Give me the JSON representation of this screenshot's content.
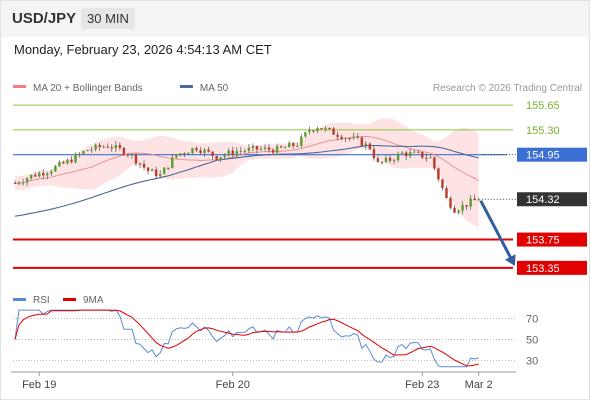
{
  "header": {
    "symbol": "USD/JPY",
    "timeframe": "30 MIN"
  },
  "datetime": "Monday, February 23, 2026 4:54:13 AM CET",
  "credit": "Research © 2026 Trading Central",
  "colors": {
    "green_level": "#8cc63f",
    "blue_level": "#3b6fd4",
    "red_level": "#e00000",
    "price_tag": "#333333",
    "bollinger_fill": "#fde3e3",
    "ma20": "#e88a8a",
    "ma50": "#4a6a9a",
    "rsi": "#5b8ad6",
    "rsi_ma": "#e00000",
    "candle_up": "#5aa02c",
    "candle_down": "#c0392b",
    "forecast_arrow": "#2f5f9e"
  },
  "chart_data": [
    {
      "type": "candlestick",
      "title": "",
      "legend": [
        {
          "name": "MA 20 + Bollinger Bands",
          "color": "#f08080"
        },
        {
          "name": "MA 50",
          "color": "#4a6a9a"
        }
      ],
      "legend_position": "top-left",
      "ylim": [
        153.15,
        156.02
      ],
      "x_ticks": [
        {
          "label": "Feb 19",
          "index": 6
        },
        {
          "label": "Feb 20",
          "index": 54
        },
        {
          "label": "Feb 23",
          "index": 101
        },
        {
          "label": "Mar 2",
          "index": 115
        }
      ],
      "levels": [
        {
          "value": 155.65,
          "label": "155.65",
          "kind": "resistance"
        },
        {
          "value": 155.3,
          "label": "155.30",
          "kind": "resistance"
        },
        {
          "value": 154.95,
          "label": "154.95",
          "kind": "pivot"
        },
        {
          "value": 154.32,
          "label": "154.32",
          "kind": "last"
        },
        {
          "value": 153.75,
          "label": "153.75",
          "kind": "support"
        },
        {
          "value": 153.35,
          "label": "153.35",
          "kind": "support"
        }
      ],
      "forecast_arrow": {
        "from_index": 115,
        "from_value": 154.3,
        "to_index": 124,
        "to_value": 153.4
      }
    },
    {
      "type": "line",
      "title": "",
      "legend": [
        {
          "name": "RSI",
          "color": "#5b8ad6"
        },
        {
          "name": "9MA",
          "color": "#e00000"
        }
      ],
      "ylim": [
        20,
        80
      ],
      "y_ticks": [
        70,
        50,
        30
      ],
      "grid": "dotted"
    }
  ]
}
